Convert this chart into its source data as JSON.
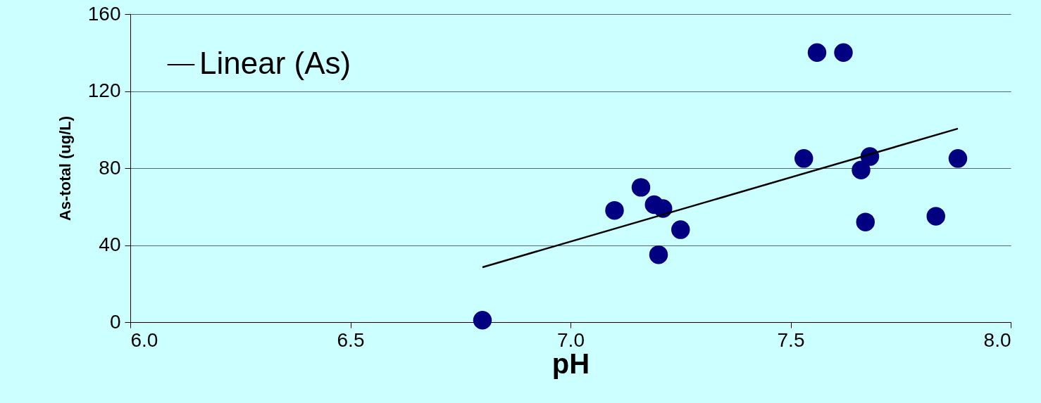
{
  "chart_data": {
    "type": "scatter",
    "xlabel": "pH",
    "ylabel": "As-total (ug/L)",
    "xlim": [
      6.0,
      8.0
    ],
    "xticks": [
      {
        "value": 6.0,
        "label": "6.0"
      },
      {
        "value": 6.5,
        "label": "6.5"
      },
      {
        "value": 7.0,
        "label": "7.0"
      },
      {
        "value": 7.5,
        "label": "7.5"
      },
      {
        "value": 8.0,
        "label": "8.0"
      }
    ],
    "ylim": [
      0,
      160
    ],
    "yticks": [
      0,
      40,
      80,
      120,
      160
    ],
    "grid": "y",
    "legend": "top left",
    "marker": "circle",
    "series": [
      {
        "color": "#000080",
        "x": [
          6.8,
          7.1,
          7.16,
          7.19,
          7.21,
          7.2,
          7.25,
          7.53,
          7.56,
          7.62,
          7.66,
          7.68,
          7.67,
          7.83,
          7.88
        ],
        "values": [
          1,
          58,
          70,
          61,
          59,
          35,
          48,
          85,
          140,
          140,
          79,
          86,
          52,
          55,
          85
        ]
      },
      {
        "type": "line",
        "name": "Linear (As)",
        "color": "#000000",
        "x": [
          6.8,
          7.88
        ],
        "values": [
          28.5,
          100.5
        ],
        "marker": "none"
      }
    ]
  }
}
